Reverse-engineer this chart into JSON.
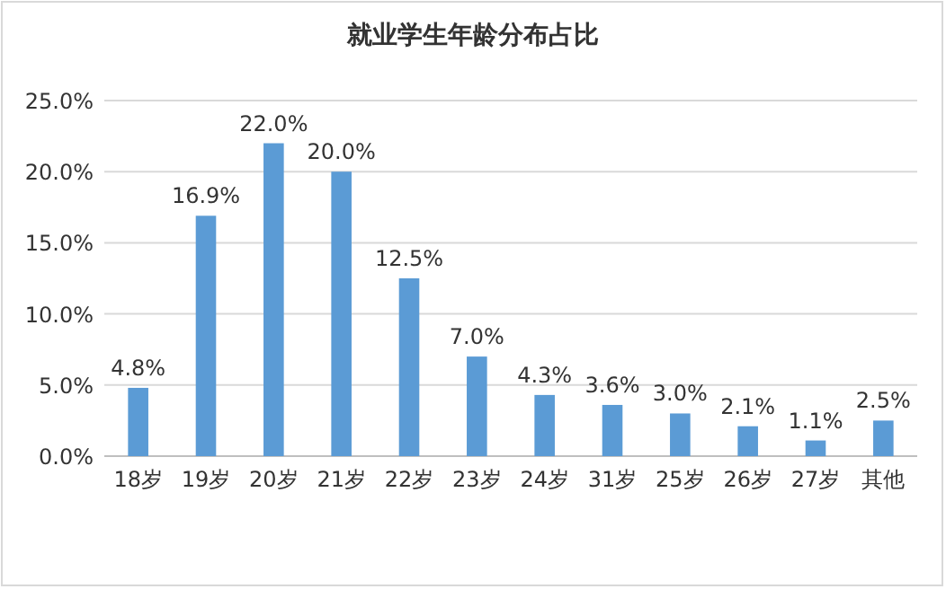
{
  "chart_data": {
    "type": "bar",
    "title": "就业学生年龄分布占比",
    "categories": [
      "18岁",
      "19岁",
      "20岁",
      "21岁",
      "22岁",
      "23岁",
      "24岁",
      "31岁",
      "25岁",
      "26岁",
      "27岁",
      "其他"
    ],
    "values": [
      4.8,
      16.9,
      22.0,
      20.0,
      12.5,
      7.0,
      4.3,
      3.6,
      3.0,
      2.1,
      1.1,
      2.5
    ],
    "value_labels": [
      "4.8%",
      "16.9%",
      "22.0%",
      "20.0%",
      "12.5%",
      "7.0%",
      "4.3%",
      "3.6%",
      "3.0%",
      "2.1%",
      "1.1%",
      "2.5%"
    ],
    "color": "#5b9bd5",
    "ylim": [
      0,
      25
    ],
    "yticks": [
      {
        "value": 0,
        "label": "0.0%"
      },
      {
        "value": 5,
        "label": "5.0%"
      },
      {
        "value": 10,
        "label": "10.0%"
      },
      {
        "value": 15,
        "label": "15.0%"
      },
      {
        "value": 20,
        "label": "20.0%"
      },
      {
        "value": 25,
        "label": "25.0%"
      }
    ],
    "grid": true
  }
}
